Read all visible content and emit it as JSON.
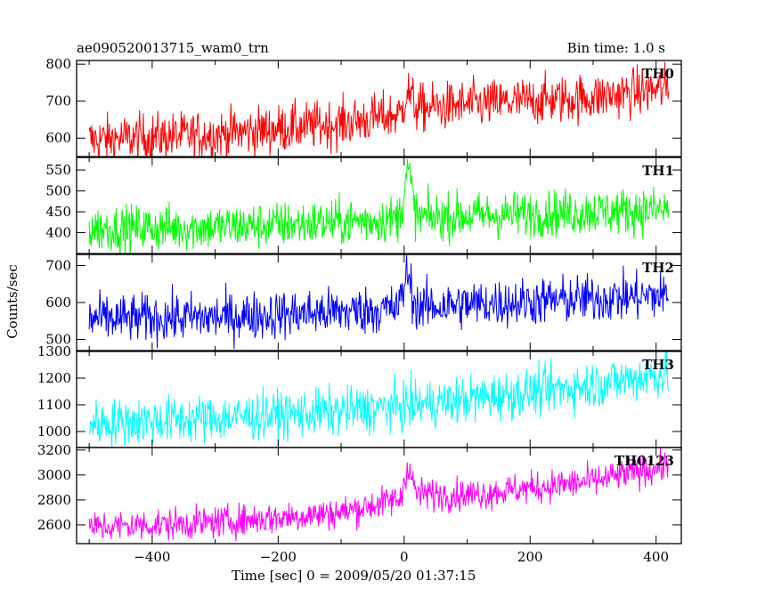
{
  "header": {
    "title": "ae090520013715_wam0_trn",
    "bin_time": "Bin time: 1.0 s"
  },
  "chart_data": {
    "type": "line",
    "xlabel": "Time [sec] 0 = 2009/05/20 01:37:15",
    "ylabel": "Counts/sec",
    "xlim": [
      -520,
      440
    ],
    "x_ticks": [
      -400,
      -200,
      0,
      200,
      400
    ],
    "x_tick_labels": [
      "−400",
      "−200",
      "0",
      "200",
      "400"
    ],
    "x_range": [
      -500,
      420
    ],
    "grid": false,
    "panels": [
      {
        "name": "TH0",
        "color": "#ff0000",
        "ylim": [
          550,
          810
        ],
        "yticks": [
          600,
          700,
          800
        ],
        "trend": [
          [
            -500,
            595
          ],
          [
            -300,
            610
          ],
          [
            -100,
            640
          ],
          [
            -5,
            665
          ],
          [
            5,
            730
          ],
          [
            20,
            680
          ],
          [
            100,
            690
          ],
          [
            300,
            710
          ],
          [
            420,
            735
          ]
        ],
        "noise": 33,
        "peaks": []
      },
      {
        "name": "TH1",
        "color": "#00ff00",
        "ylim": [
          350,
          580
        ],
        "yticks": [
          400,
          450,
          500,
          550
        ],
        "trend": [
          [
            -500,
            410
          ],
          [
            -300,
            413
          ],
          [
            -100,
            425
          ],
          [
            0,
            435
          ],
          [
            100,
            440
          ],
          [
            300,
            450
          ],
          [
            420,
            455
          ]
        ],
        "noise": 28,
        "peaks": [
          {
            "t": 6,
            "amp": 110,
            "w": 6
          }
        ]
      },
      {
        "name": "TH2",
        "color": "#0000ff",
        "ylim": [
          470,
          730
        ],
        "yticks": [
          500,
          600,
          700
        ],
        "trend": [
          [
            -500,
            555
          ],
          [
            -300,
            560
          ],
          [
            -100,
            575
          ],
          [
            0,
            585
          ],
          [
            100,
            595
          ],
          [
            300,
            610
          ],
          [
            420,
            620
          ]
        ],
        "noise": 33,
        "peaks": [
          {
            "t": 5,
            "amp": 90,
            "w": 6
          }
        ]
      },
      {
        "name": "TH3",
        "color": "#00ffff",
        "ylim": [
          940,
          1300
        ],
        "yticks": [
          1000,
          1100,
          1200,
          1300
        ],
        "trend": [
          [
            -500,
            1030
          ],
          [
            -300,
            1050
          ],
          [
            -100,
            1075
          ],
          [
            0,
            1095
          ],
          [
            100,
            1120
          ],
          [
            300,
            1175
          ],
          [
            420,
            1220
          ]
        ],
        "noise": 45,
        "peaks": []
      },
      {
        "name": "TH0123",
        "color": "#ff00ff",
        "ylim": [
          2450,
          3220
        ],
        "yticks": [
          2600,
          2800,
          3000,
          3200
        ],
        "trend": [
          [
            -500,
            2580
          ],
          [
            -300,
            2620
          ],
          [
            -100,
            2700
          ],
          [
            -5,
            2810
          ],
          [
            5,
            3080
          ],
          [
            20,
            2850
          ],
          [
            100,
            2840
          ],
          [
            300,
            2950
          ],
          [
            420,
            3080
          ]
        ],
        "noise": 65,
        "peaks": []
      }
    ]
  }
}
